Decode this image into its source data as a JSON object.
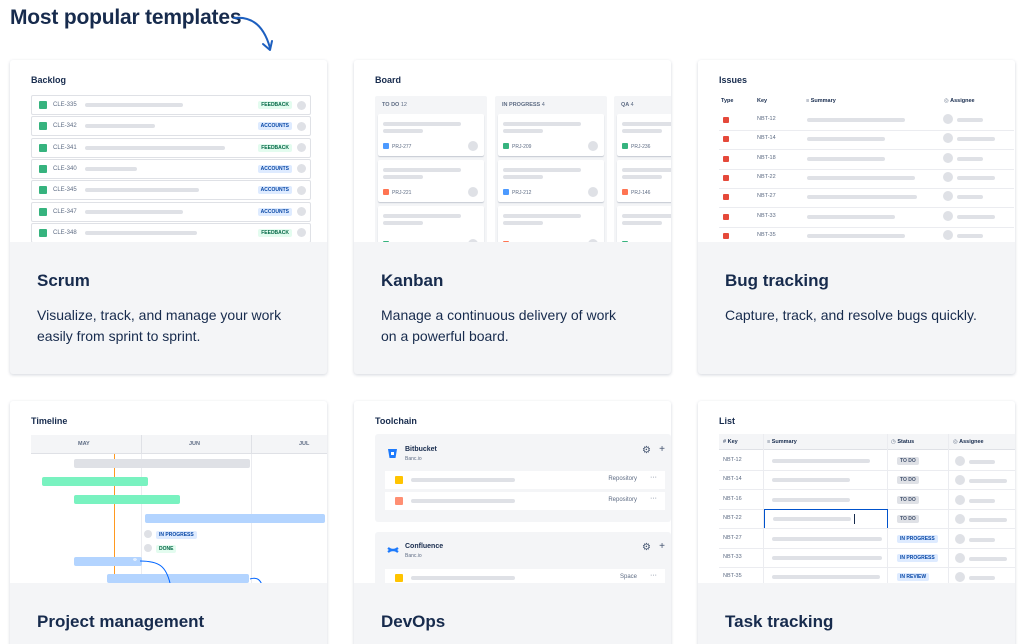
{
  "heading": "Most popular templates",
  "cards": [
    {
      "title": "Scrum",
      "desc1": "Visualize, track, and manage your work",
      "desc2": "easily from sprint to sprint."
    },
    {
      "title": "Kanban",
      "desc1": "Manage a continuous delivery of work",
      "desc2": "on a powerful board."
    },
    {
      "title": "Bug tracking",
      "desc1": "Capture, track, and resolve bugs quickly.",
      "desc2": ""
    },
    {
      "title": "Project management"
    },
    {
      "title": "DevOps"
    },
    {
      "title": "Task tracking"
    }
  ],
  "backlog": {
    "title": "Backlog",
    "rows": [
      {
        "key": "CLE-335",
        "badge": "FEEDBACK"
      },
      {
        "key": "CLE-342",
        "badge": "ACCOUNTS"
      },
      {
        "key": "CLE-341",
        "badge": "FEEDBACK"
      },
      {
        "key": "CLE-340",
        "badge": "ACCOUNTS"
      },
      {
        "key": "CLE-345",
        "badge": "ACCOUNTS"
      },
      {
        "key": "CLE-347",
        "badge": "ACCOUNTS"
      },
      {
        "key": "CLE-348",
        "badge": "FEEDBACK"
      }
    ]
  },
  "board": {
    "title": "Board",
    "columns": [
      {
        "name": "TO DO",
        "count": "12",
        "cards": [
          "PRJ-277",
          "PRJ-221",
          "PRJ-280"
        ]
      },
      {
        "name": "IN PROGRESS",
        "count": "4",
        "cards": [
          "PRJ-209",
          "PRJ-212",
          "PRJ-213"
        ]
      },
      {
        "name": "QA",
        "count": "4",
        "cards": [
          "PRJ-236",
          "PRJ-146",
          "PRJ-243"
        ]
      }
    ]
  },
  "issues": {
    "title": "Issues",
    "headers": {
      "type": "Type",
      "key": "Key",
      "summary": "Summary",
      "assignee": "Assignee"
    },
    "rows": [
      "NBT-12",
      "NBT-14",
      "NBT-18",
      "NBT-22",
      "NBT-27",
      "NBT-33",
      "NBT-35"
    ]
  },
  "timeline": {
    "title": "Timeline",
    "months": [
      "MAY",
      "JUN",
      "JUL"
    ],
    "status1": "IN PROGRESS",
    "status2": "DONE"
  },
  "toolchain": {
    "title": "Toolchain",
    "tools": [
      {
        "name": "Bitbucket",
        "sub": "Banc.io",
        "items": [
          "Repository",
          "Repository"
        ]
      },
      {
        "name": "Confluence",
        "sub": "Banc.io",
        "items": [
          "Space"
        ]
      }
    ]
  },
  "list": {
    "title": "List",
    "headers": {
      "key": "Key",
      "summary": "Summary",
      "status": "Status",
      "assignee": "Assignee"
    },
    "rows": [
      {
        "key": "NBT-12",
        "status": "TO DO"
      },
      {
        "key": "NBT-14",
        "status": "TO DO"
      },
      {
        "key": "NBT-16",
        "status": "TO DO"
      },
      {
        "key": "NBT-22",
        "status": "TO DO"
      },
      {
        "key": "NBT-27",
        "status": "IN PROGRESS"
      },
      {
        "key": "NBT-33",
        "status": "IN PROGRESS"
      },
      {
        "key": "NBT-35",
        "status": "IN REVIEW"
      }
    ]
  },
  "colors": {
    "text": "#172b4d",
    "story": "#36b37e",
    "task": "#4c9aff",
    "bug": "#e5493a",
    "accent_blue": "#1d7afc",
    "timeline_green": "#79f2c0",
    "timeline_blue": "#b3d4ff",
    "timeline_marker": "#ff991f"
  }
}
